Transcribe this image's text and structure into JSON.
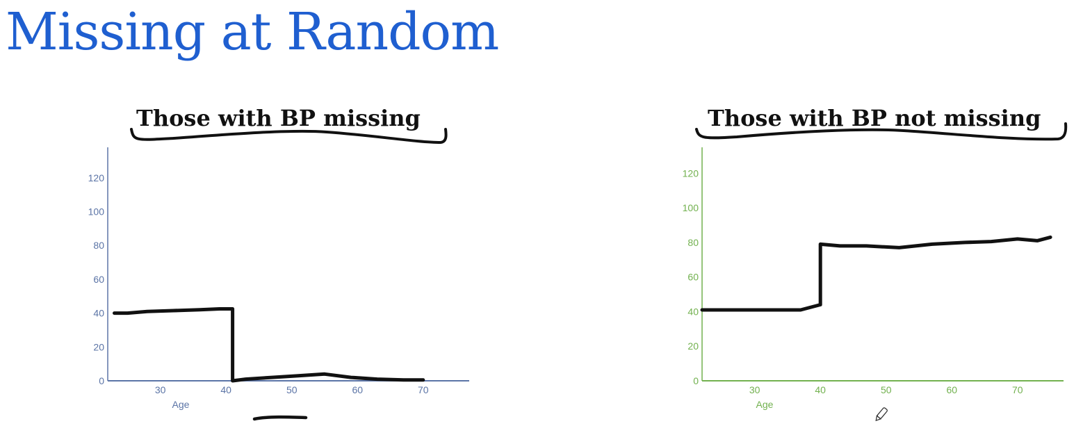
{
  "title": "Missing at Random",
  "colors": {
    "title": "#1f5fd0",
    "ink": "#111111",
    "left_axis": "#5b74a6",
    "right_axis": "#72b14f"
  },
  "cursor_icon": "pen-icon",
  "chart_data": [
    {
      "type": "line",
      "heading": "Those with BP missing",
      "xlabel": "Age",
      "ylabel": "",
      "xlim": [
        22,
        77
      ],
      "ylim": [
        0,
        138
      ],
      "x_ticks": [
        30,
        40,
        50,
        60,
        70
      ],
      "y_ticks": [
        0,
        20,
        40,
        60,
        80,
        100,
        120
      ],
      "grid": false,
      "series": [
        {
          "x": [
            23,
            25,
            28,
            32,
            36,
            39,
            41,
            41,
            43,
            47,
            51,
            55,
            59,
            63,
            67,
            70
          ],
          "y": [
            40,
            40,
            41,
            41.5,
            42,
            42.5,
            42.5,
            0,
            1,
            2,
            3,
            4,
            2,
            1,
            0.5,
            0.5
          ]
        }
      ]
    },
    {
      "type": "line",
      "heading": "Those with BP not missing",
      "xlabel": "Age",
      "ylabel": "",
      "xlim": [
        22,
        77
      ],
      "ylim": [
        0,
        135
      ],
      "x_ticks": [
        30,
        40,
        50,
        60,
        70
      ],
      "y_ticks": [
        0,
        20,
        40,
        60,
        80,
        100,
        120
      ],
      "grid": false,
      "series": [
        {
          "x": [
            22,
            27,
            32,
            37,
            40,
            40,
            43,
            47,
            52,
            57,
            62,
            66,
            70,
            73,
            75
          ],
          "y": [
            41,
            41,
            41,
            41,
            44,
            79,
            78,
            78,
            77,
            79,
            80,
            80.5,
            82,
            81,
            83
          ]
        }
      ]
    }
  ]
}
